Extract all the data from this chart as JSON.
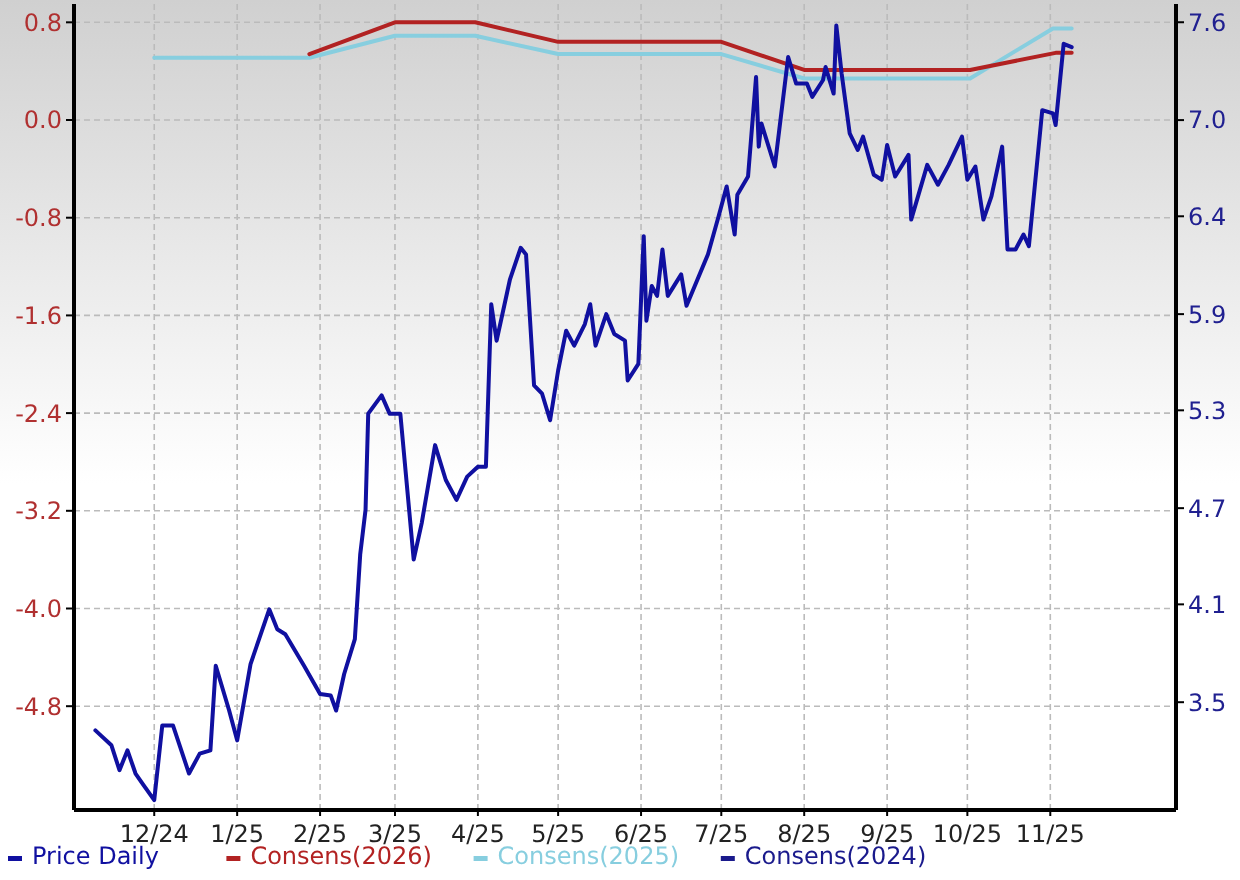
{
  "chart_data": {
    "type": "line",
    "xlim": [
      "2024-11-01",
      "2025-12-18"
    ],
    "xticks": [
      {
        "value": "2024-12-01",
        "label": "12/24"
      },
      {
        "value": "2025-01-01",
        "label": "1/25"
      },
      {
        "value": "2025-02-01",
        "label": "2/25"
      },
      {
        "value": "2025-03-01",
        "label": "3/25"
      },
      {
        "value": "2025-04-01",
        "label": "4/25"
      },
      {
        "value": "2025-05-01",
        "label": "5/25"
      },
      {
        "value": "2025-06-01",
        "label": "6/25"
      },
      {
        "value": "2025-07-01",
        "label": "7/25"
      },
      {
        "value": "2025-08-01",
        "label": "8/25"
      },
      {
        "value": "2025-09-01",
        "label": "9/25"
      },
      {
        "value": "2025-10-01",
        "label": "10/25"
      },
      {
        "value": "2025-11-01",
        "label": "11/25"
      }
    ],
    "ylim": [
      -5.65,
      0.95
    ],
    "yticks": [
      0.8,
      {
        "value": 0,
        "label": "0.0"
      },
      -0.8,
      -1.6,
      -2.4,
      -3.2,
      {
        "value": -4,
        "label": "-4.0"
      },
      -4.8
    ],
    "y2lim": [
      2.87,
      7.73
    ],
    "y2ticks": [
      {
        "value": 3.52,
        "label": "3.5"
      },
      {
        "value": 4.11,
        "label": "4.1"
      },
      {
        "value": 4.69,
        "label": "4.7"
      },
      {
        "value": 5.28,
        "label": "5.3"
      },
      {
        "value": 5.86,
        "label": "5.9"
      },
      {
        "value": 6.45,
        "label": "6.4"
      },
      {
        "value": 7.03,
        "label": "7.0"
      },
      {
        "value": 7.62,
        "label": "7.6"
      }
    ],
    "grid": true,
    "legend": "bottom",
    "series": [
      {
        "name": "Price Daily",
        "color": "#1010a0",
        "axis": "y2",
        "x": [
          "2024-11-09",
          "2024-11-11",
          "2024-11-15",
          "2024-11-18",
          "2024-11-21",
          "2024-11-24",
          "2024-11-27",
          "2024-12-01",
          "2024-12-04",
          "2024-12-08",
          "2024-12-14",
          "2024-12-18",
          "2024-12-22",
          "2024-12-24",
          "2024-12-29",
          "2025-01-01",
          "2025-01-06",
          "2025-01-13",
          "2025-01-16",
          "2025-01-19",
          "2025-01-26",
          "2025-02-01",
          "2025-02-05",
          "2025-02-07",
          "2025-02-10",
          "2025-02-14",
          "2025-02-16",
          "2025-02-18",
          "2025-02-19",
          "2025-02-24",
          "2025-02-27",
          "2025-03-03",
          "2025-03-08",
          "2025-03-11",
          "2025-03-16",
          "2025-03-20",
          "2025-03-24",
          "2025-03-28",
          "2025-04-01",
          "2025-04-04",
          "2025-04-06",
          "2025-04-08",
          "2025-04-13",
          "2025-04-17",
          "2025-04-19",
          "2025-04-22",
          "2025-04-25",
          "2025-04-28",
          "2025-05-01",
          "2025-05-04",
          "2025-05-07",
          "2025-05-11",
          "2025-05-13",
          "2025-05-15",
          "2025-05-19",
          "2025-05-22",
          "2025-05-26",
          "2025-05-27",
          "2025-05-31",
          "2025-06-02",
          "2025-06-03",
          "2025-06-05",
          "2025-06-07",
          "2025-06-09",
          "2025-06-11",
          "2025-06-16",
          "2025-06-18",
          "2025-06-26",
          "2025-06-30",
          "2025-07-03",
          "2025-07-06",
          "2025-07-07",
          "2025-07-11",
          "2025-07-14",
          "2025-07-15",
          "2025-07-16",
          "2025-07-21",
          "2025-07-26",
          "2025-07-29",
          "2025-08-02",
          "2025-08-04",
          "2025-08-08",
          "2025-08-09",
          "2025-08-12",
          "2025-08-13",
          "2025-08-15",
          "2025-08-18",
          "2025-08-21",
          "2025-08-23",
          "2025-08-27",
          "2025-08-30",
          "2025-09-01",
          "2025-09-04",
          "2025-09-09",
          "2025-09-10",
          "2025-09-16",
          "2025-09-20",
          "2025-09-24",
          "2025-09-29",
          "2025-10-01",
          "2025-10-04",
          "2025-10-07",
          "2025-10-10",
          "2025-10-14",
          "2025-10-16",
          "2025-10-19",
          "2025-10-22",
          "2025-10-24",
          "2025-10-29",
          "2025-11-02",
          "2025-11-03",
          "2025-11-06",
          "2025-11-09"
        ],
        "values": [
          3.35,
          3.32,
          3.26,
          3.11,
          3.23,
          3.09,
          3.02,
          2.93,
          3.38,
          3.38,
          3.09,
          3.21,
          3.23,
          3.74,
          3.47,
          3.29,
          3.75,
          4.08,
          3.96,
          3.93,
          3.74,
          3.57,
          3.56,
          3.47,
          3.69,
          3.9,
          4.41,
          4.68,
          5.26,
          5.37,
          5.26,
          5.26,
          4.38,
          4.6,
          5.07,
          4.86,
          4.74,
          4.88,
          4.94,
          4.94,
          5.92,
          5.7,
          6.07,
          6.26,
          6.22,
          5.43,
          5.38,
          5.22,
          5.52,
          5.76,
          5.67,
          5.8,
          5.92,
          5.67,
          5.86,
          5.74,
          5.7,
          5.46,
          5.56,
          6.33,
          5.82,
          6.03,
          5.97,
          6.25,
          5.97,
          6.1,
          5.91,
          6.22,
          6.45,
          6.63,
          6.34,
          6.58,
          6.69,
          7.29,
          6.87,
          7.01,
          6.75,
          7.41,
          7.25,
          7.25,
          7.17,
          7.27,
          7.35,
          7.19,
          7.6,
          7.31,
          6.95,
          6.85,
          6.93,
          6.7,
          6.67,
          6.88,
          6.69,
          6.82,
          6.43,
          6.76,
          6.64,
          6.76,
          6.93,
          6.67,
          6.75,
          6.43,
          6.57,
          6.87,
          6.25,
          6.25,
          6.34,
          6.27,
          7.09,
          7.07,
          7.0,
          7.49,
          7.47
        ]
      },
      {
        "name": "Consens(2026)",
        "color": "#b22222",
        "x": [
          "2025-01-28",
          "2025-03-01",
          "2025-03-31",
          "2025-05-01",
          "2025-07-01",
          "2025-08-01",
          "2025-10-02",
          "2025-11-03",
          "2025-11-09"
        ],
        "values": [
          0.54,
          0.8,
          0.8,
          0.64,
          0.64,
          0.41,
          0.41,
          0.55,
          0.55
        ]
      },
      {
        "name": "Consens(2025)",
        "color": "#87cedf",
        "x": [
          "2024-12-01",
          "2025-01-28",
          "2025-03-01",
          "2025-03-31",
          "2025-05-01",
          "2025-07-01",
          "2025-08-01",
          "2025-10-02",
          "2025-11-02",
          "2025-11-09"
        ],
        "values": [
          0.51,
          0.51,
          0.69,
          0.69,
          0.54,
          0.54,
          0.34,
          0.34,
          0.75,
          0.75
        ]
      },
      {
        "name": "Consens(2024)",
        "color": "#1a1a8c"
      }
    ]
  }
}
